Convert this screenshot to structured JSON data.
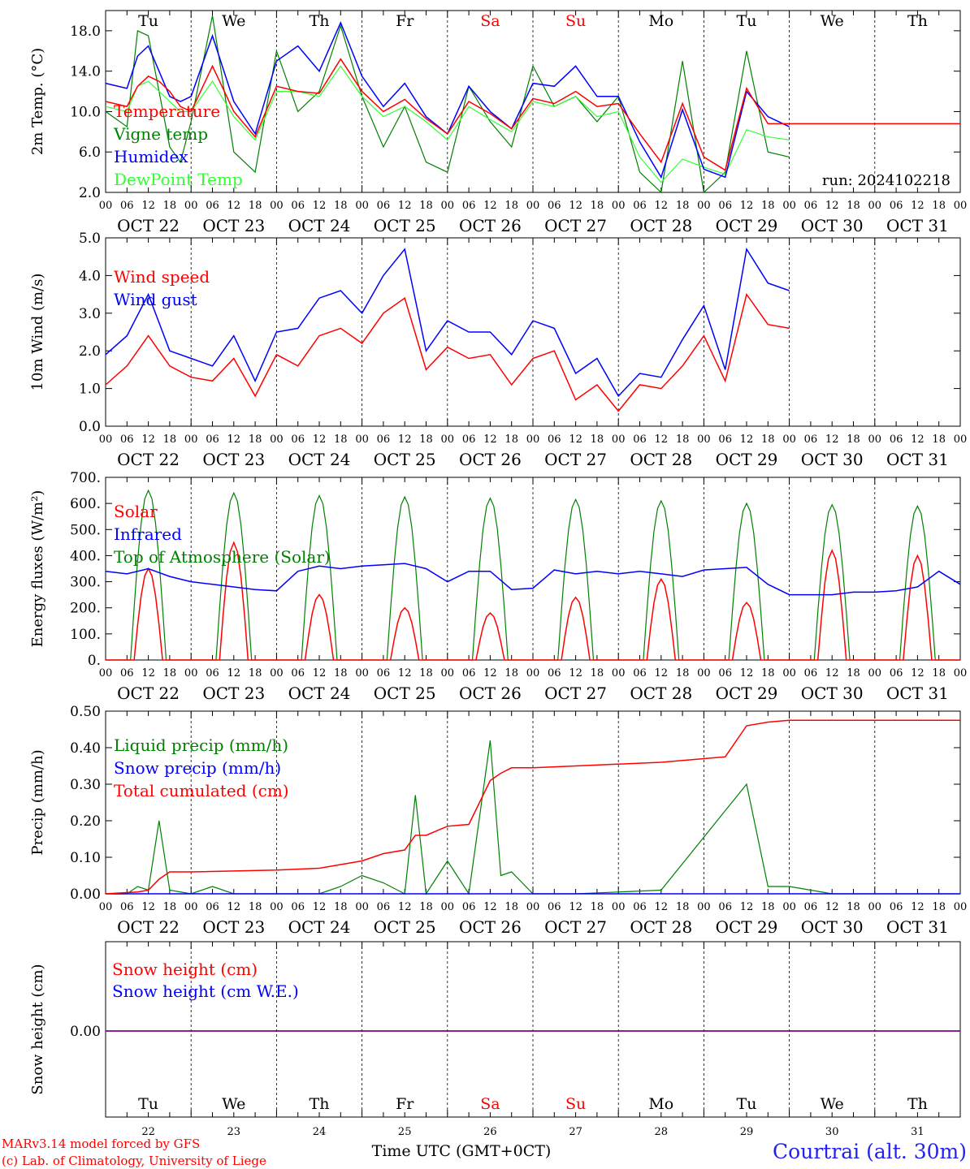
{
  "days": {
    "short_top": [
      "Tu",
      "We",
      "Th",
      "Fr",
      "Sa",
      "Su",
      "Mo",
      "Tu",
      "We",
      "Th"
    ],
    "short_bottom": [
      "Tu",
      "We",
      "Th",
      "Fr",
      "Sa",
      "Su",
      "Mo",
      "Tu",
      "We",
      "Th"
    ],
    "weekend_index": [
      4,
      5
    ],
    "dates": [
      "OCT 22",
      "OCT 23",
      "OCT 24",
      "OCT 25",
      "OCT 26",
      "OCT 27",
      "OCT 28",
      "OCT 29",
      "OCT 30",
      "OCT 31"
    ],
    "day_numbers": [
      "22",
      "23",
      "24",
      "25",
      "26",
      "27",
      "28",
      "29",
      "30",
      "31"
    ],
    "hour_ticks": [
      "00",
      "06",
      "12",
      "18"
    ],
    "final_tick": "00"
  },
  "footer": {
    "model_line": "MARv3.14 model forced by GFS",
    "credit_line": "(c) Lab. of Climatology, University of Liege",
    "time_axis_label": "Time UTC (GMT+0CT)",
    "station": "Courtrai (alt. 30m)"
  },
  "colors": {
    "red": "#ff0000",
    "green": "#008000",
    "blue": "#0000ff",
    "lightgreen": "#33ff33",
    "purple": "#800080",
    "station_blue": "#2222ee"
  },
  "chart_data": [
    {
      "type": "line",
      "ylabel": "2m Temp. (°C)",
      "ylim": [
        2.0,
        20.0
      ],
      "yticks": [
        "2.0",
        "6.0",
        "10.0",
        "14.0",
        "18.0"
      ],
      "run_label": "run: 2024102218",
      "x_unit": "hours since OCT 22 00 UTC",
      "series": [
        {
          "name": "Temperature",
          "color": "red",
          "x": [
            0,
            6,
            9,
            12,
            15,
            18,
            21,
            24,
            30,
            36,
            42,
            48,
            54,
            60,
            66,
            72,
            78,
            84,
            90,
            96,
            102,
            108,
            114,
            120,
            126,
            132,
            138,
            144,
            150,
            156,
            162,
            168,
            174,
            180,
            186,
            192,
            198,
            204,
            210,
            216,
            222,
            228,
            234,
            240
          ],
          "y": [
            11.0,
            10.5,
            12.5,
            13.5,
            13.0,
            12.0,
            10.5,
            10.0,
            14.5,
            10.0,
            7.5,
            12.5,
            12.0,
            11.8,
            15.2,
            12.0,
            10.0,
            11.2,
            9.3,
            7.8,
            11.0,
            9.8,
            8.3,
            11.3,
            10.8,
            12.0,
            10.5,
            10.8,
            7.8,
            5.0,
            10.8,
            5.5,
            4.2,
            12.3,
            8.8,
            8.8,
            8.8,
            8.8,
            8.8,
            8.8,
            8.8,
            8.8,
            8.8,
            8.8
          ]
        },
        {
          "name": "Vigne temp",
          "color": "green",
          "x": [
            0,
            6,
            9,
            12,
            15,
            18,
            21,
            24,
            30,
            36,
            42,
            48,
            54,
            60,
            66,
            72,
            78,
            84,
            90,
            96,
            102,
            108,
            114,
            120,
            126,
            132,
            138,
            144,
            150,
            156,
            162,
            168,
            174,
            180,
            186,
            192
          ],
          "y": [
            10.0,
            8.5,
            18.0,
            17.5,
            12.0,
            6.5,
            5.0,
            9.0,
            19.5,
            6.0,
            4.0,
            16.0,
            10.0,
            12.0,
            18.5,
            11.5,
            6.5,
            10.5,
            5.0,
            4.0,
            12.5,
            9.0,
            6.5,
            14.5,
            10.5,
            11.5,
            9.0,
            11.5,
            4.0,
            2.0,
            15.0,
            2.0,
            4.0,
            16.0,
            6.0,
            5.5
          ]
        },
        {
          "name": "Humidex",
          "color": "blue",
          "x": [
            0,
            6,
            9,
            12,
            15,
            18,
            21,
            24,
            30,
            36,
            42,
            48,
            54,
            60,
            66,
            72,
            78,
            84,
            90,
            96,
            102,
            108,
            114,
            120,
            126,
            132,
            138,
            144,
            150,
            156,
            162,
            168,
            174,
            180,
            186,
            192
          ],
          "y": [
            12.8,
            12.3,
            15.5,
            16.5,
            14.0,
            11.5,
            11.0,
            11.5,
            17.5,
            11.0,
            7.8,
            15.0,
            16.5,
            14.0,
            18.8,
            13.5,
            10.5,
            12.8,
            9.5,
            7.8,
            12.5,
            10.0,
            8.3,
            12.8,
            12.5,
            14.5,
            11.5,
            11.5,
            7.0,
            3.5,
            10.2,
            4.3,
            3.5,
            12.0,
            9.5,
            8.5
          ]
        },
        {
          "name": "DewPoint Temp",
          "color": "lightgreen",
          "x": [
            0,
            6,
            9,
            12,
            15,
            18,
            21,
            24,
            30,
            36,
            42,
            48,
            54,
            60,
            66,
            72,
            78,
            84,
            90,
            96,
            102,
            108,
            114,
            120,
            126,
            132,
            138,
            144,
            150,
            156,
            162,
            168,
            174,
            180,
            186,
            192
          ],
          "y": [
            10.5,
            10.0,
            12.5,
            13.0,
            12.0,
            11.0,
            10.0,
            10.0,
            13.0,
            9.5,
            7.2,
            12.0,
            12.0,
            11.5,
            14.5,
            11.5,
            9.5,
            10.5,
            9.0,
            7.2,
            10.5,
            9.2,
            8.0,
            11.0,
            10.5,
            11.5,
            9.5,
            10.0,
            5.5,
            3.0,
            5.3,
            4.5,
            3.8,
            8.2,
            7.5,
            7.2
          ]
        }
      ],
      "legend": [
        "Temperature",
        "Vigne temp",
        "Humidex",
        "DewPoint Temp"
      ]
    },
    {
      "type": "line",
      "ylabel": "10m Wind (m/s)",
      "ylim": [
        0.0,
        5.0
      ],
      "yticks": [
        "0.0",
        "1.0",
        "2.0",
        "3.0",
        "4.0",
        "5.0"
      ],
      "series": [
        {
          "name": "Wind speed",
          "color": "red",
          "x": [
            0,
            6,
            12,
            18,
            24,
            30,
            36,
            42,
            48,
            54,
            60,
            66,
            72,
            78,
            84,
            90,
            96,
            102,
            108,
            114,
            120,
            126,
            132,
            138,
            144,
            150,
            156,
            162,
            168,
            174,
            180,
            186,
            192
          ],
          "y": [
            1.1,
            1.6,
            2.4,
            1.6,
            1.3,
            1.2,
            1.8,
            0.8,
            1.9,
            1.6,
            2.4,
            2.6,
            2.2,
            3.0,
            3.4,
            1.5,
            2.1,
            1.8,
            1.9,
            1.1,
            1.8,
            2.0,
            0.7,
            1.1,
            0.4,
            1.1,
            1.0,
            1.6,
            2.4,
            1.2,
            3.5,
            2.7,
            2.6
          ]
        },
        {
          "name": "Wind gust",
          "color": "blue",
          "x": [
            0,
            6,
            12,
            18,
            24,
            30,
            36,
            42,
            48,
            54,
            60,
            66,
            72,
            78,
            84,
            90,
            96,
            102,
            108,
            114,
            120,
            126,
            132,
            138,
            144,
            150,
            156,
            162,
            168,
            174,
            180,
            186,
            192
          ],
          "y": [
            1.9,
            2.4,
            3.5,
            2.0,
            1.8,
            1.6,
            2.4,
            1.2,
            2.5,
            2.6,
            3.4,
            3.6,
            3.0,
            4.0,
            4.7,
            2.0,
            2.8,
            2.5,
            2.5,
            1.9,
            2.8,
            2.6,
            1.4,
            1.8,
            0.8,
            1.4,
            1.3,
            2.3,
            3.2,
            1.5,
            4.7,
            3.8,
            3.6
          ]
        }
      ],
      "legend": [
        "Wind speed",
        "Wind gust"
      ]
    },
    {
      "type": "line",
      "ylabel": "Energy fluxes (W/m²)",
      "ylim": [
        0,
        700
      ],
      "yticks": [
        "0.",
        "100.",
        "200.",
        "300.",
        "400.",
        "500.",
        "600.",
        "700."
      ],
      "series": [
        {
          "name": "Solar",
          "color": "red",
          "peaks": [
            350,
            450,
            250,
            200,
            180,
            240,
            310,
            220,
            420,
            400
          ]
        },
        {
          "name": "Infrared",
          "color": "blue",
          "x": [
            0,
            6,
            12,
            18,
            24,
            30,
            36,
            42,
            48,
            54,
            60,
            66,
            72,
            78,
            84,
            90,
            96,
            102,
            108,
            114,
            120,
            126,
            132,
            138,
            144,
            150,
            156,
            162,
            168,
            174,
            180,
            186,
            192,
            198,
            204,
            210,
            216,
            222,
            228,
            234,
            240
          ],
          "y": [
            340,
            330,
            350,
            320,
            300,
            290,
            280,
            270,
            265,
            340,
            360,
            350,
            360,
            365,
            370,
            350,
            300,
            340,
            340,
            270,
            275,
            345,
            330,
            340,
            330,
            340,
            330,
            320,
            345,
            350,
            355,
            290,
            250,
            250,
            250,
            260,
            260,
            265,
            280,
            340,
            290
          ]
        },
        {
          "name": "Top of Atmosphere (Solar)",
          "color": "green",
          "peaks": [
            650,
            640,
            630,
            625,
            620,
            615,
            610,
            600,
            595,
            590
          ]
        }
      ],
      "legend": [
        "Solar",
        "Infrared",
        "Top of Atmosphere (Solar)"
      ]
    },
    {
      "type": "line",
      "ylabel": "Precip (mm/h)",
      "ylim": [
        0.0,
        0.5
      ],
      "yticks": [
        "0.00",
        "0.10",
        "0.20",
        "0.30",
        "0.40",
        "0.50"
      ],
      "series": [
        {
          "name": "Liquid precip (mm/h)",
          "color": "green",
          "x": [
            0,
            6,
            9,
            12,
            15,
            18,
            24,
            30,
            36,
            48,
            60,
            66,
            72,
            78,
            84,
            87,
            90,
            96,
            102,
            108,
            111,
            114,
            120,
            132,
            156,
            180,
            186,
            192,
            204,
            240
          ],
          "y": [
            0,
            0,
            0.02,
            0.01,
            0.2,
            0.01,
            0,
            0.02,
            0,
            0,
            0,
            0.02,
            0.05,
            0.03,
            0,
            0.27,
            0,
            0.09,
            0,
            0.42,
            0.05,
            0.06,
            0,
            0,
            0.01,
            0.3,
            0.02,
            0.02,
            0,
            0
          ]
        },
        {
          "name": "Snow precip (mm/h)",
          "color": "blue",
          "x": [
            0,
            240
          ],
          "y": [
            0,
            0
          ]
        },
        {
          "name": "Total cumulated (cm)",
          "color": "red",
          "x": [
            0,
            9,
            12,
            15,
            18,
            24,
            48,
            60,
            66,
            72,
            78,
            84,
            87,
            90,
            96,
            102,
            108,
            111,
            114,
            120,
            132,
            156,
            174,
            180,
            186,
            192,
            240
          ],
          "y": [
            0,
            0.005,
            0.01,
            0.04,
            0.06,
            0.06,
            0.065,
            0.07,
            0.08,
            0.09,
            0.11,
            0.12,
            0.16,
            0.16,
            0.185,
            0.19,
            0.31,
            0.33,
            0.345,
            0.345,
            0.35,
            0.36,
            0.375,
            0.46,
            0.47,
            0.475,
            0.475
          ]
        }
      ],
      "legend": [
        "Liquid precip (mm/h)",
        "Snow precip (mm/h)",
        "Total cumulated (cm)"
      ]
    },
    {
      "type": "line",
      "ylabel": "Snow height (cm)",
      "yticks": [
        "0.00"
      ],
      "series": [
        {
          "name": "Snow height (cm)",
          "color": "red",
          "x": [
            0,
            240
          ],
          "y": [
            0,
            0
          ]
        },
        {
          "name": "Snow height (cm W.E.)",
          "color": "blue",
          "x": [
            0,
            240
          ],
          "y": [
            0,
            0
          ]
        }
      ],
      "legend": [
        "Snow height (cm)",
        "Snow height (cm W.E.)"
      ]
    }
  ]
}
